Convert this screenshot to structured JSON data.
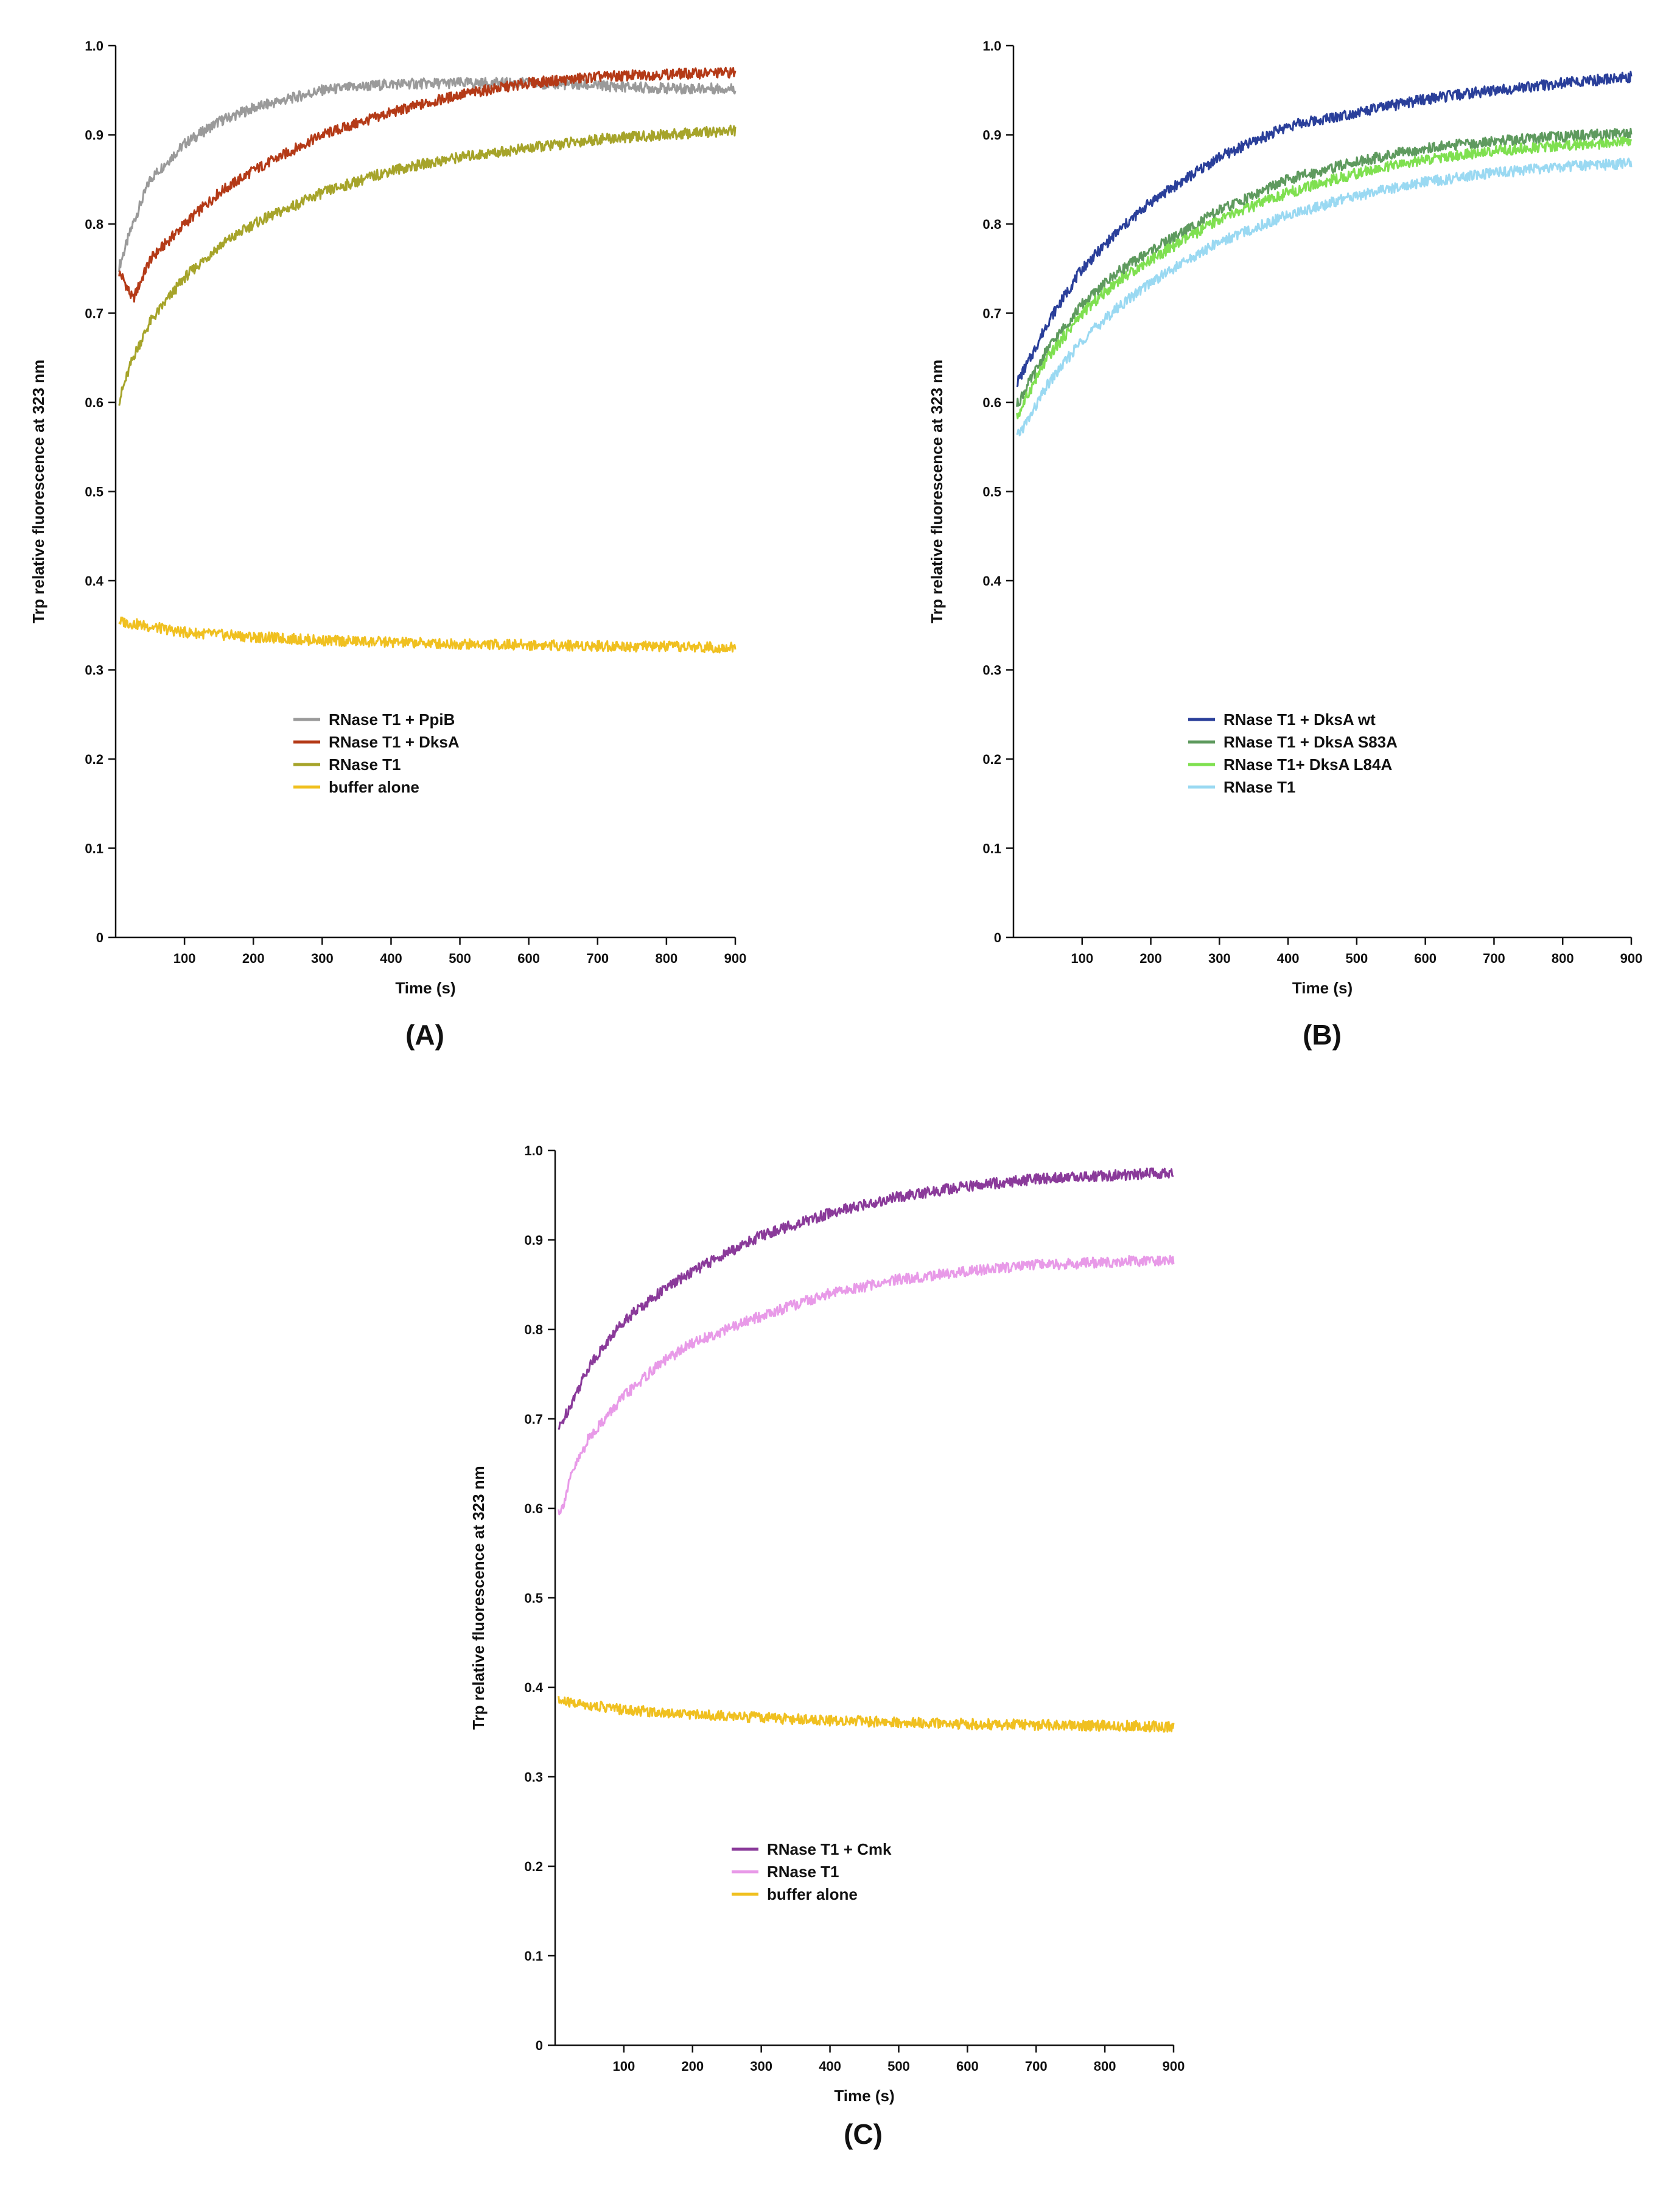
{
  "chart_data": [
    {
      "type": "line",
      "panel_label": "(A)",
      "xlabel": "Time (s)",
      "ylabel": "Trp relative fluorescence at 323 nm",
      "xlim": [
        0,
        900
      ],
      "ylim": [
        0,
        1.0
      ],
      "x_ticks": [
        "100",
        "200",
        "300",
        "400",
        "500",
        "600",
        "700",
        "800",
        "900"
      ],
      "y_ticks": [
        "0",
        "0.1",
        "0.2",
        "0.3",
        "0.4",
        "0.5",
        "0.6",
        "0.7",
        "0.8",
        "0.9",
        "1.0"
      ],
      "legend_position": "center-left",
      "grid": false,
      "series": [
        {
          "name": "RNase T1 + PpiB",
          "color": "#9a9a9a",
          "x": [
            0,
            25,
            50,
            100,
            150,
            200,
            300,
            400,
            500,
            600,
            700,
            800,
            900
          ],
          "y": [
            0.74,
            0.8,
            0.85,
            0.89,
            0.915,
            0.93,
            0.95,
            0.957,
            0.958,
            0.958,
            0.955,
            0.952,
            0.952
          ]
        },
        {
          "name": "RNase T1 + DksA",
          "color": "#b43a17",
          "x": [
            0,
            10,
            25,
            50,
            100,
            150,
            200,
            300,
            400,
            500,
            600,
            700,
            800,
            900
          ],
          "y": [
            0.75,
            0.74,
            0.715,
            0.76,
            0.8,
            0.835,
            0.86,
            0.9,
            0.925,
            0.945,
            0.958,
            0.965,
            0.968,
            0.97
          ]
        },
        {
          "name": "RNase T1",
          "color": "#a6a42a",
          "x": [
            0,
            25,
            50,
            100,
            150,
            200,
            300,
            400,
            500,
            600,
            700,
            800,
            900
          ],
          "y": [
            0.59,
            0.65,
            0.69,
            0.74,
            0.775,
            0.8,
            0.835,
            0.86,
            0.875,
            0.885,
            0.895,
            0.9,
            0.905
          ]
        },
        {
          "name": "buffer alone",
          "color": "#f0c020",
          "x": [
            0,
            100,
            200,
            300,
            400,
            500,
            600,
            700,
            800,
            900
          ],
          "y": [
            0.355,
            0.342,
            0.337,
            0.333,
            0.331,
            0.329,
            0.328,
            0.327,
            0.326,
            0.325
          ]
        }
      ]
    },
    {
      "type": "line",
      "panel_label": "(B)",
      "xlabel": "Time (s)",
      "ylabel": "Trp relative fluorescence at 323 nm",
      "xlim": [
        0,
        900
      ],
      "ylim": [
        0,
        1.0
      ],
      "x_ticks": [
        "100",
        "200",
        "300",
        "400",
        "500",
        "600",
        "700",
        "800",
        "900"
      ],
      "y_ticks": [
        "0",
        "0.1",
        "0.2",
        "0.3",
        "0.4",
        "0.5",
        "0.6",
        "0.7",
        "0.8",
        "0.9",
        "1.0"
      ],
      "legend_position": "center",
      "grid": false,
      "series": [
        {
          "name": "RNase T1 + DksA wt",
          "color": "#2a3f9a",
          "x": [
            0,
            25,
            50,
            100,
            150,
            200,
            300,
            400,
            500,
            600,
            700,
            800,
            900
          ],
          "y": [
            0.615,
            0.65,
            0.69,
            0.75,
            0.79,
            0.825,
            0.875,
            0.91,
            0.925,
            0.94,
            0.95,
            0.958,
            0.965
          ]
        },
        {
          "name": "RNase T1 + DksA S83A",
          "color": "#5e9a5e",
          "x": [
            0,
            25,
            50,
            100,
            150,
            200,
            300,
            400,
            500,
            600,
            700,
            800,
            900
          ],
          "y": [
            0.59,
            0.625,
            0.66,
            0.71,
            0.745,
            0.77,
            0.815,
            0.85,
            0.87,
            0.885,
            0.893,
            0.898,
            0.902
          ]
        },
        {
          "name": "RNase T1+ DksA L84A",
          "color": "#7fe050",
          "x": [
            0,
            25,
            50,
            100,
            150,
            200,
            300,
            400,
            500,
            600,
            700,
            800,
            900
          ],
          "y": [
            0.575,
            0.615,
            0.65,
            0.7,
            0.735,
            0.76,
            0.805,
            0.835,
            0.857,
            0.872,
            0.882,
            0.888,
            0.892
          ]
        },
        {
          "name": "RNase T1",
          "color": "#9ad9f2",
          "x": [
            0,
            25,
            50,
            100,
            150,
            200,
            300,
            400,
            500,
            600,
            700,
            800,
            900
          ],
          "y": [
            0.555,
            0.585,
            0.62,
            0.67,
            0.705,
            0.735,
            0.78,
            0.81,
            0.832,
            0.847,
            0.857,
            0.864,
            0.868
          ]
        }
      ]
    },
    {
      "type": "line",
      "panel_label": "(C)",
      "xlabel": "Time (s)",
      "ylabel": "Trp relative fluorescence at 323 nm",
      "xlim": [
        0,
        900
      ],
      "ylim": [
        0,
        1.0
      ],
      "x_ticks": [
        "100",
        "200",
        "300",
        "400",
        "500",
        "600",
        "700",
        "800",
        "900"
      ],
      "y_ticks": [
        "0",
        "0.1",
        "0.2",
        "0.3",
        "0.4",
        "0.5",
        "0.6",
        "0.7",
        "0.8",
        "0.9",
        "1.0"
      ],
      "legend_position": "bottom-left",
      "grid": false,
      "series": [
        {
          "name": "RNase T1 + Cmk",
          "color": "#8a3a9a",
          "x": [
            0,
            25,
            50,
            100,
            150,
            200,
            300,
            400,
            500,
            600,
            700,
            800,
            900
          ],
          "y": [
            0.68,
            0.72,
            0.76,
            0.81,
            0.84,
            0.865,
            0.905,
            0.93,
            0.948,
            0.96,
            0.968,
            0.972,
            0.975
          ]
        },
        {
          "name": "RNase T1",
          "color": "#e89ae8",
          "x": [
            0,
            10,
            25,
            50,
            100,
            150,
            200,
            300,
            400,
            500,
            600,
            700,
            800,
            900
          ],
          "y": [
            0.595,
            0.6,
            0.64,
            0.68,
            0.725,
            0.76,
            0.785,
            0.815,
            0.84,
            0.856,
            0.865,
            0.872,
            0.875,
            0.878
          ]
        },
        {
          "name": "buffer alone",
          "color": "#f0c020",
          "x": [
            0,
            100,
            200,
            300,
            400,
            500,
            600,
            700,
            800,
            900
          ],
          "y": [
            0.385,
            0.375,
            0.37,
            0.366,
            0.363,
            0.361,
            0.359,
            0.358,
            0.357,
            0.356
          ]
        }
      ]
    }
  ]
}
